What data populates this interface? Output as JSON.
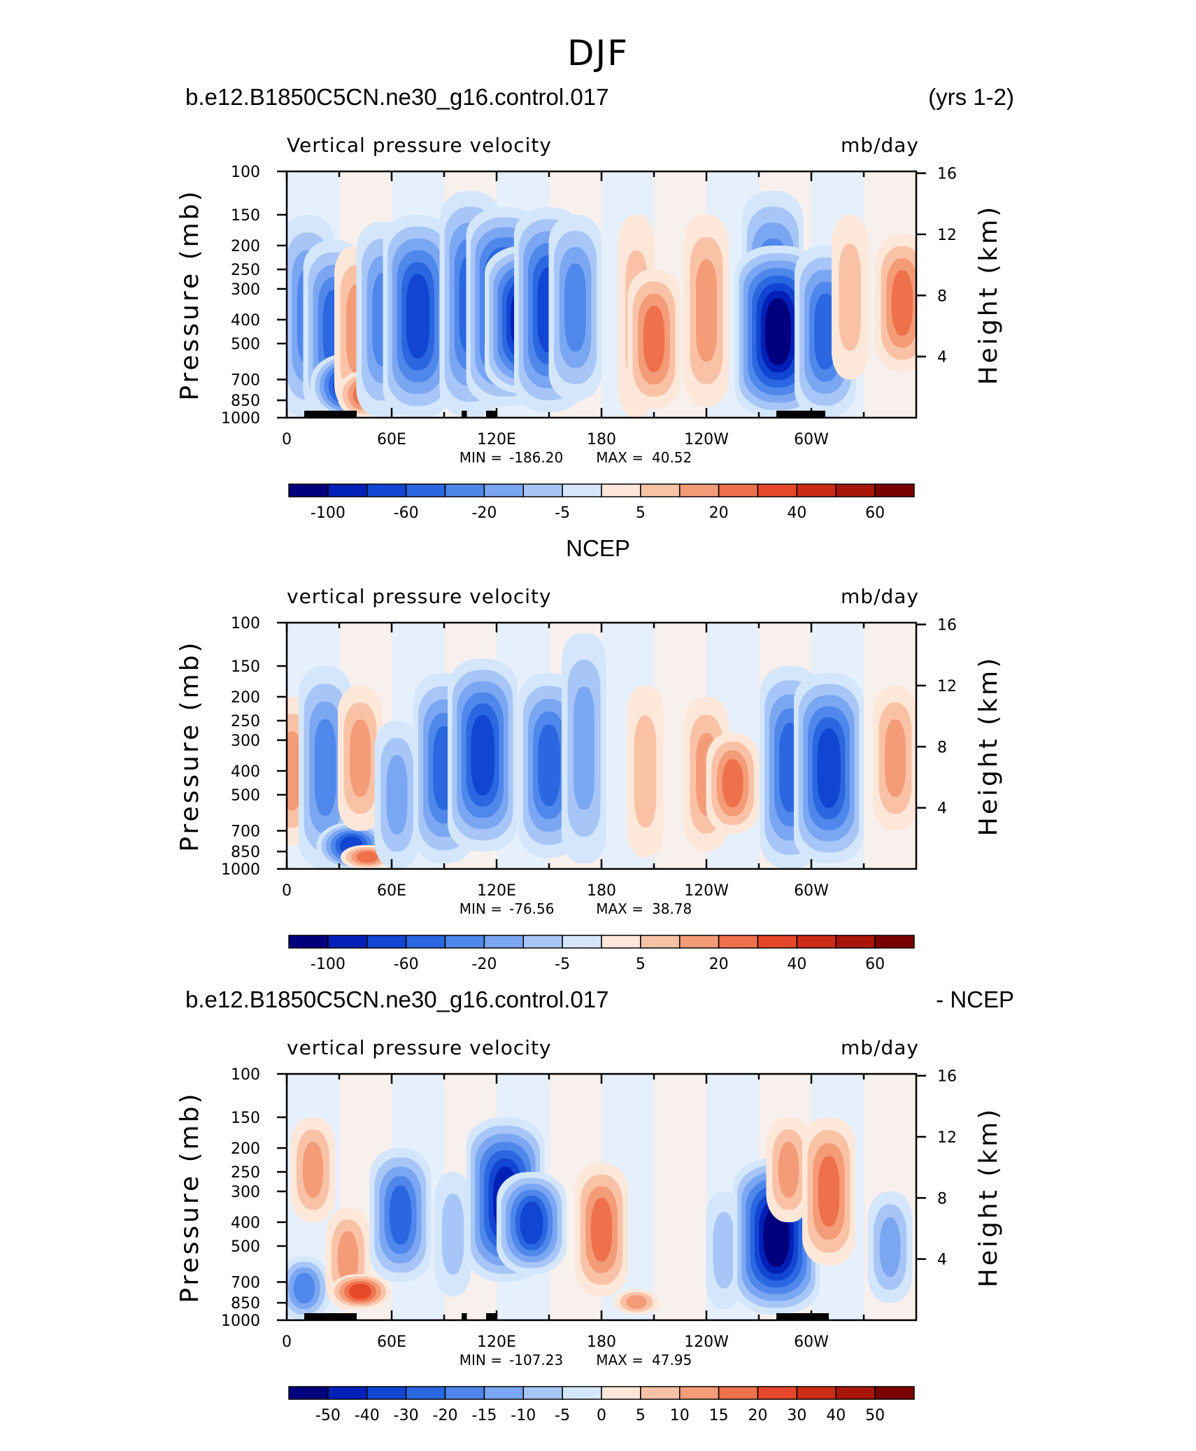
{
  "title": "DJF",
  "color_scale": {
    "blues": [
      "#00007f",
      "#0020b8",
      "#1246d2",
      "#2b67e0",
      "#4f87eb",
      "#7aa6f2",
      "#a7c6f7",
      "#d4e6fb"
    ],
    "reds": [
      "#fde7d9",
      "#f9c2a6",
      "#f49b78",
      "#ee714b",
      "#e6472a",
      "#cc2c18",
      "#a81509",
      "#7a0000"
    ]
  },
  "chart_data": [
    {
      "type": "heatmap",
      "left_title": "b.e12.B1850C5CN.ne30_g16.control.017",
      "right_title": "(yrs 1-2)",
      "subtitle_left": "Vertical pressure velocity",
      "subtitle_right": "mb/day",
      "ylabel": "Pressure (mb)",
      "ylabel_right": "Height (km)",
      "x_ticks": [
        "0",
        "60E",
        "120E",
        "180",
        "120W",
        "60W"
      ],
      "y_ticks": [
        "100",
        "150",
        "200",
        "250",
        "300",
        "400",
        "500",
        "700",
        "850",
        "1000"
      ],
      "right_ticks": [
        "16",
        "12",
        "8",
        "4"
      ],
      "stats": {
        "min_label": "MIN =",
        "min": "-186.20",
        "max_label": "MAX =",
        "max": "40.52"
      },
      "colorbar_labels": [
        "-100",
        "-60",
        "-20",
        "-5",
        "5",
        "20",
        "40",
        "60"
      ],
      "bars_lon": [
        [
          10,
          40
        ],
        [
          100,
          103
        ],
        [
          114,
          120
        ],
        [
          280,
          308
        ]
      ],
      "field": [
        {
          "lon": 12,
          "p0": 150,
          "p1": 1000,
          "level": -4
        },
        {
          "lon": 27,
          "p0": 190,
          "p1": 1000,
          "level": -5
        },
        {
          "lon": 36,
          "p0": 550,
          "p1": 1000,
          "level": -7
        },
        {
          "lon": 40,
          "p0": 200,
          "p1": 950,
          "level": 3
        },
        {
          "lon": 44,
          "p0": 650,
          "p1": 1000,
          "level": 4
        },
        {
          "lon": 55,
          "p0": 160,
          "p1": 1000,
          "level": -4
        },
        {
          "lon": 75,
          "p0": 150,
          "p1": 1000,
          "level": -6
        },
        {
          "lon": 105,
          "p0": 120,
          "p1": 1000,
          "level": -5
        },
        {
          "lon": 125,
          "p0": 140,
          "p1": 900,
          "level": -7
        },
        {
          "lon": 138,
          "p0": 200,
          "p1": 800,
          "level": -8
        },
        {
          "lon": 150,
          "p0": 140,
          "p1": 950,
          "level": -6
        },
        {
          "lon": 165,
          "p0": 150,
          "p1": 850,
          "level": -4
        },
        {
          "lon": 200,
          "p0": 150,
          "p1": 1000,
          "level": 2
        },
        {
          "lon": 210,
          "p0": 250,
          "p1": 920,
          "level": 4
        },
        {
          "lon": 240,
          "p0": 150,
          "p1": 900,
          "level": 3
        },
        {
          "lon": 278,
          "p0": 120,
          "p1": 1000,
          "level": -5
        },
        {
          "lon": 281,
          "p0": 200,
          "p1": 1000,
          "level": -8
        },
        {
          "lon": 308,
          "p0": 200,
          "p1": 1000,
          "level": -5
        },
        {
          "lon": 322,
          "p0": 150,
          "p1": 700,
          "level": 2
        },
        {
          "lon": 352,
          "p0": 180,
          "p1": 650,
          "level": 4
        }
      ],
      "colorbar_n": 16
    },
    {
      "type": "heatmap",
      "left_title": "",
      "center_title": "NCEP",
      "right_title": "",
      "subtitle_left": "vertical pressure velocity",
      "subtitle_right": "mb/day",
      "ylabel": "Pressure (mb)",
      "ylabel_right": "Height (km)",
      "x_ticks": [
        "0",
        "60E",
        "120E",
        "180",
        "120W",
        "60W"
      ],
      "y_ticks": [
        "100",
        "150",
        "200",
        "250",
        "300",
        "400",
        "500",
        "700",
        "850",
        "1000"
      ],
      "right_ticks": [
        "16",
        "12",
        "8",
        "4"
      ],
      "stats": {
        "min_label": "MIN =",
        "min": "-76.56",
        "max_label": "MAX =",
        "max": "38.78"
      },
      "colorbar_labels": [
        "-100",
        "-60",
        "-20",
        "-5",
        "5",
        "20",
        "40",
        "60"
      ],
      "bars_lon": [],
      "field": [
        {
          "lon": 3,
          "p0": 200,
          "p1": 800,
          "level": 3
        },
        {
          "lon": 22,
          "p0": 150,
          "p1": 1000,
          "level": -4
        },
        {
          "lon": 37,
          "p0": 650,
          "p1": 1000,
          "level": -6
        },
        {
          "lon": 42,
          "p0": 180,
          "p1": 700,
          "level": 3
        },
        {
          "lon": 46,
          "p0": 800,
          "p1": 1000,
          "level": 4
        },
        {
          "lon": 63,
          "p0": 250,
          "p1": 1000,
          "level": -3
        },
        {
          "lon": 90,
          "p0": 160,
          "p1": 950,
          "level": -5
        },
        {
          "lon": 112,
          "p0": 140,
          "p1": 850,
          "level": -6
        },
        {
          "lon": 150,
          "p0": 160,
          "p1": 900,
          "level": -5
        },
        {
          "lon": 170,
          "p0": 110,
          "p1": 950,
          "level": -3
        },
        {
          "lon": 205,
          "p0": 180,
          "p1": 900,
          "level": 2
        },
        {
          "lon": 240,
          "p0": 200,
          "p1": 850,
          "level": 3
        },
        {
          "lon": 255,
          "p0": 280,
          "p1": 720,
          "level": 4
        },
        {
          "lon": 288,
          "p0": 150,
          "p1": 1000,
          "level": -5
        },
        {
          "lon": 310,
          "p0": 160,
          "p1": 950,
          "level": -6
        },
        {
          "lon": 348,
          "p0": 180,
          "p1": 700,
          "level": 3
        }
      ],
      "colorbar_n": 16
    },
    {
      "type": "heatmap",
      "left_title": "b.e12.B1850C5CN.ne30_g16.control.017",
      "right_title": "- NCEP",
      "subtitle_left": "vertical pressure velocity",
      "subtitle_right": "mb/day",
      "ylabel": "Pressure (mb)",
      "ylabel_right": "Height (km)",
      "x_ticks": [
        "0",
        "60E",
        "120E",
        "180",
        "120W",
        "60W"
      ],
      "y_ticks": [
        "100",
        "150",
        "200",
        "250",
        "300",
        "400",
        "500",
        "700",
        "850",
        "1000"
      ],
      "right_ticks": [
        "16",
        "12",
        "8",
        "4"
      ],
      "stats": {
        "min_label": "MIN =",
        "min": "-107.23",
        "max_label": "MAX =",
        "max": "47.95"
      },
      "colorbar_labels": [
        "-50",
        "-40",
        "-30",
        "-20",
        "-15",
        "-10",
        "-5",
        "0",
        "5",
        "10",
        "15",
        "20",
        "30",
        "40",
        "50"
      ],
      "bars_lon": [
        [
          10,
          40
        ],
        [
          100,
          103
        ],
        [
          114,
          120
        ],
        [
          280,
          310
        ]
      ],
      "field": [
        {
          "lon": 15,
          "p0": 150,
          "p1": 400,
          "level": 3
        },
        {
          "lon": 10,
          "p0": 550,
          "p1": 1000,
          "level": -4
        },
        {
          "lon": 35,
          "p0": 350,
          "p1": 900,
          "level": 3
        },
        {
          "lon": 42,
          "p0": 650,
          "p1": 900,
          "level": 5
        },
        {
          "lon": 65,
          "p0": 200,
          "p1": 700,
          "level": -5
        },
        {
          "lon": 95,
          "p0": 250,
          "p1": 800,
          "level": -2
        },
        {
          "lon": 125,
          "p0": 150,
          "p1": 700,
          "level": -7
        },
        {
          "lon": 140,
          "p0": 250,
          "p1": 650,
          "level": -6
        },
        {
          "lon": 180,
          "p0": 230,
          "p1": 800,
          "level": 4
        },
        {
          "lon": 200,
          "p0": 750,
          "p1": 950,
          "level": 3
        },
        {
          "lon": 250,
          "p0": 300,
          "p1": 900,
          "level": -2
        },
        {
          "lon": 280,
          "p0": 220,
          "p1": 950,
          "level": -8
        },
        {
          "lon": 287,
          "p0": 150,
          "p1": 400,
          "level": 3
        },
        {
          "lon": 310,
          "p0": 150,
          "p1": 600,
          "level": 4
        },
        {
          "lon": 345,
          "p0": 300,
          "p1": 850,
          "level": -3
        }
      ],
      "colorbar_n": 16
    }
  ]
}
